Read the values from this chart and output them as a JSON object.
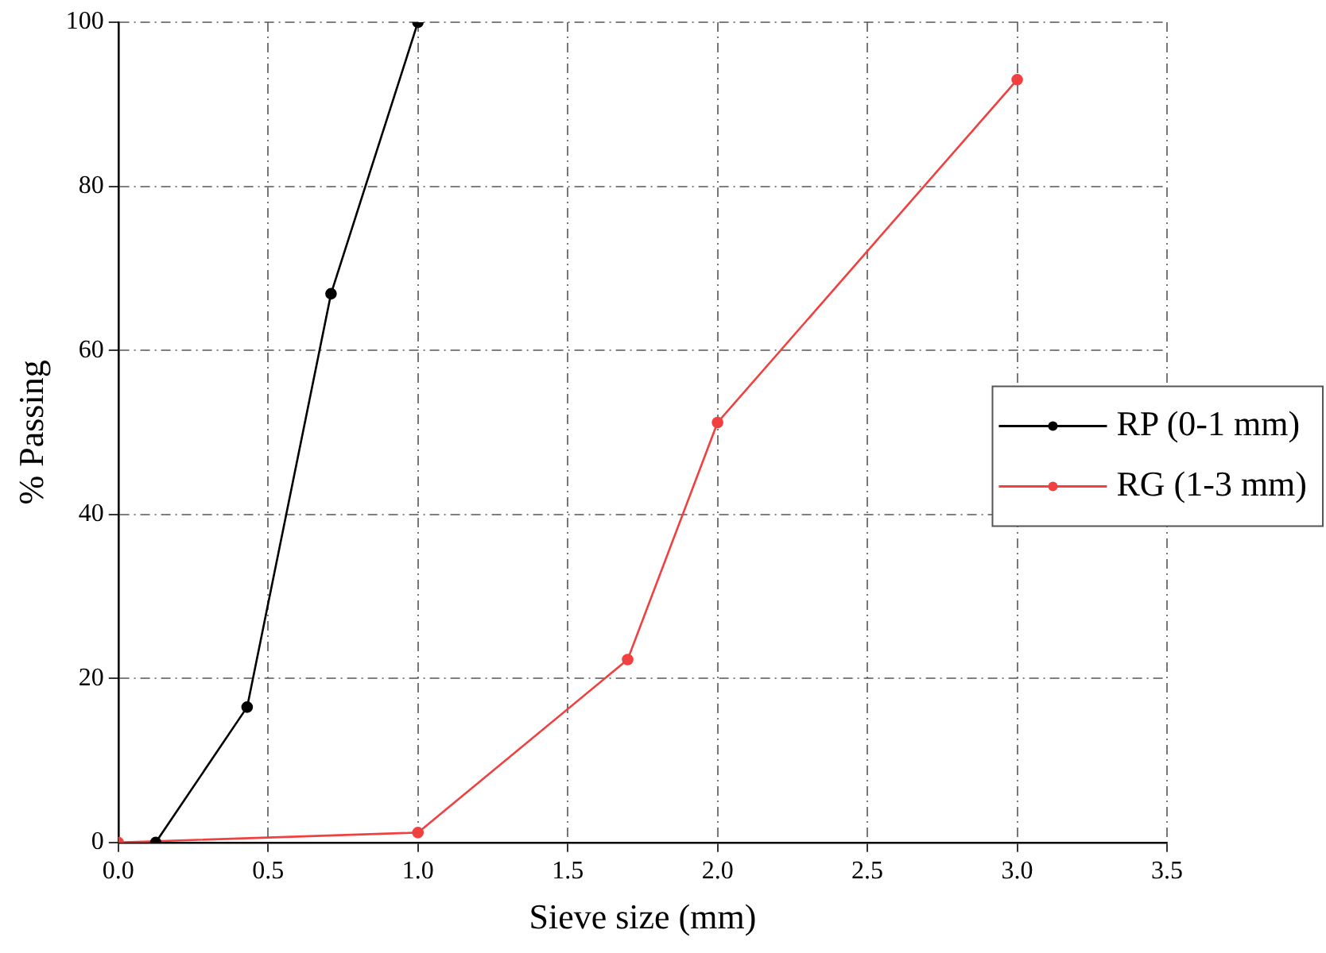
{
  "chart_data": {
    "type": "line",
    "xlabel": "Sieve size (mm)",
    "ylabel": "% Passing",
    "xlim": [
      0,
      3.5
    ],
    "xticks": [
      {
        "value": 0,
        "label": "0.0"
      },
      {
        "value": 0.5,
        "label": "0.5"
      },
      {
        "value": 1,
        "label": "1.0"
      },
      {
        "value": 1.5,
        "label": "1.5"
      },
      {
        "value": 2,
        "label": "2.0"
      },
      {
        "value": 2.5,
        "label": "2.5"
      },
      {
        "value": 3,
        "label": "3.0"
      },
      {
        "value": 3.5,
        "label": "3.5"
      }
    ],
    "ylim": [
      0,
      100
    ],
    "yticks": [
      0,
      20,
      40,
      60,
      80,
      100
    ],
    "grid": true,
    "legend": "right",
    "marker": "circle",
    "line_style": "solid",
    "series": [
      {
        "name": "RP (0-1 mm)",
        "color": "#000000",
        "x": [
          0.125,
          0.43,
          0.71,
          1.0
        ],
        "values": [
          0,
          16.5,
          66.9,
          100
        ]
      },
      {
        "name": "RG (1-3 mm)",
        "color": "#f04040",
        "x": [
          0,
          1.0,
          1.7,
          2.0,
          3.0
        ],
        "values": [
          0,
          1.2,
          22.3,
          51.2,
          93
        ]
      }
    ]
  }
}
